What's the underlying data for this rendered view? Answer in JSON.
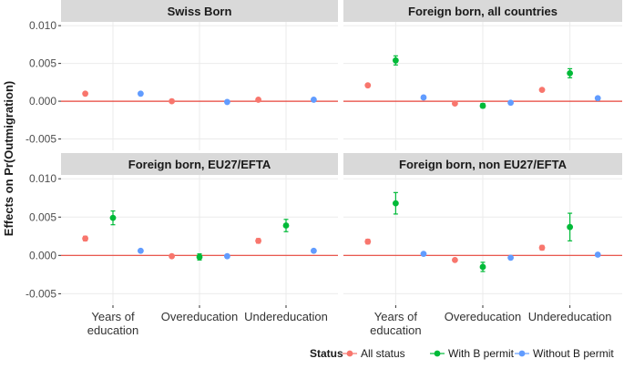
{
  "chart_data": {
    "type": "scatter",
    "title": "",
    "ylabel": "Effects on Pr(Outmigration)",
    "xlabel": "",
    "ylim": [
      -0.0065,
      0.0105
    ],
    "yticks": [
      -0.005,
      0.0,
      0.005,
      0.01
    ],
    "ytick_labels": [
      "-0.005",
      "0.000",
      "0.005",
      "0.010"
    ],
    "categories": [
      "Years of\neducation",
      "Overeducation",
      "Undereducation"
    ],
    "grid": true,
    "reference_line": {
      "y": 0,
      "color": "#e8443a"
    },
    "legend": {
      "title": "Status",
      "position": "bottom-right",
      "entries": [
        {
          "name": "All status",
          "color": "#f8766d"
        },
        {
          "name": "With B permit",
          "color": "#00ba38"
        },
        {
          "name": "Without B permit",
          "color": "#619cff"
        }
      ]
    },
    "panels": [
      {
        "title": "Swiss Born",
        "show_y_labels": true,
        "show_x_labels": false,
        "series": [
          {
            "name": "All status",
            "values": [
              0.001,
              0.0,
              0.0002
            ],
            "err_low": [
              null,
              null,
              null
            ],
            "err_high": [
              null,
              null,
              null
            ]
          },
          {
            "name": "With B permit",
            "values": [
              null,
              null,
              null
            ],
            "err_low": [
              null,
              null,
              null
            ],
            "err_high": [
              null,
              null,
              null
            ]
          },
          {
            "name": "Without B permit",
            "values": [
              0.001,
              -0.0001,
              0.0002
            ],
            "err_low": [
              null,
              null,
              null
            ],
            "err_high": [
              null,
              null,
              null
            ]
          }
        ]
      },
      {
        "title": "Foreign born, all countries",
        "show_y_labels": false,
        "show_x_labels": false,
        "series": [
          {
            "name": "All status",
            "values": [
              0.0021,
              -0.0003,
              0.0015
            ],
            "err_low": [
              null,
              null,
              null
            ],
            "err_high": [
              null,
              null,
              null
            ]
          },
          {
            "name": "With B permit",
            "values": [
              0.0054,
              -0.0006,
              0.0037
            ],
            "err_low": [
              0.0048,
              -0.0009,
              0.0031
            ],
            "err_high": [
              0.006,
              -0.0003,
              0.0043
            ]
          },
          {
            "name": "Without B permit",
            "values": [
              0.0005,
              -0.0002,
              0.0004
            ],
            "err_low": [
              null,
              null,
              null
            ],
            "err_high": [
              null,
              null,
              null
            ]
          }
        ]
      },
      {
        "title": "Foreign born, EU27/EFTA",
        "show_y_labels": true,
        "show_x_labels": true,
        "series": [
          {
            "name": "All status",
            "values": [
              0.0022,
              -0.0001,
              0.0019
            ],
            "err_low": [
              0.0019,
              null,
              0.0016
            ],
            "err_high": [
              0.0025,
              null,
              0.0022
            ]
          },
          {
            "name": "With B permit",
            "values": [
              0.0049,
              -0.0002,
              0.0039
            ],
            "err_low": [
              0.004,
              -0.0006,
              0.0031
            ],
            "err_high": [
              0.0058,
              0.0002,
              0.0047
            ]
          },
          {
            "name": "Without B permit",
            "values": [
              0.0006,
              -0.0001,
              0.0006
            ],
            "err_low": [
              null,
              null,
              null
            ],
            "err_high": [
              null,
              null,
              null
            ]
          }
        ]
      },
      {
        "title": "Foreign born, non EU27/EFTA",
        "show_y_labels": false,
        "show_x_labels": true,
        "series": [
          {
            "name": "All status",
            "values": [
              0.0018,
              -0.0006,
              0.001
            ],
            "err_low": [
              0.0015,
              null,
              0.0007
            ],
            "err_high": [
              0.0021,
              null,
              0.0013
            ]
          },
          {
            "name": "With B permit",
            "values": [
              0.0068,
              -0.0015,
              0.0037
            ],
            "err_low": [
              0.0054,
              -0.0021,
              0.0019
            ],
            "err_high": [
              0.0082,
              -0.0009,
              0.0055
            ]
          },
          {
            "name": "Without B permit",
            "values": [
              0.0002,
              -0.0003,
              0.0001
            ],
            "err_low": [
              null,
              null,
              null
            ],
            "err_high": [
              null,
              null,
              null
            ]
          }
        ]
      }
    ]
  }
}
